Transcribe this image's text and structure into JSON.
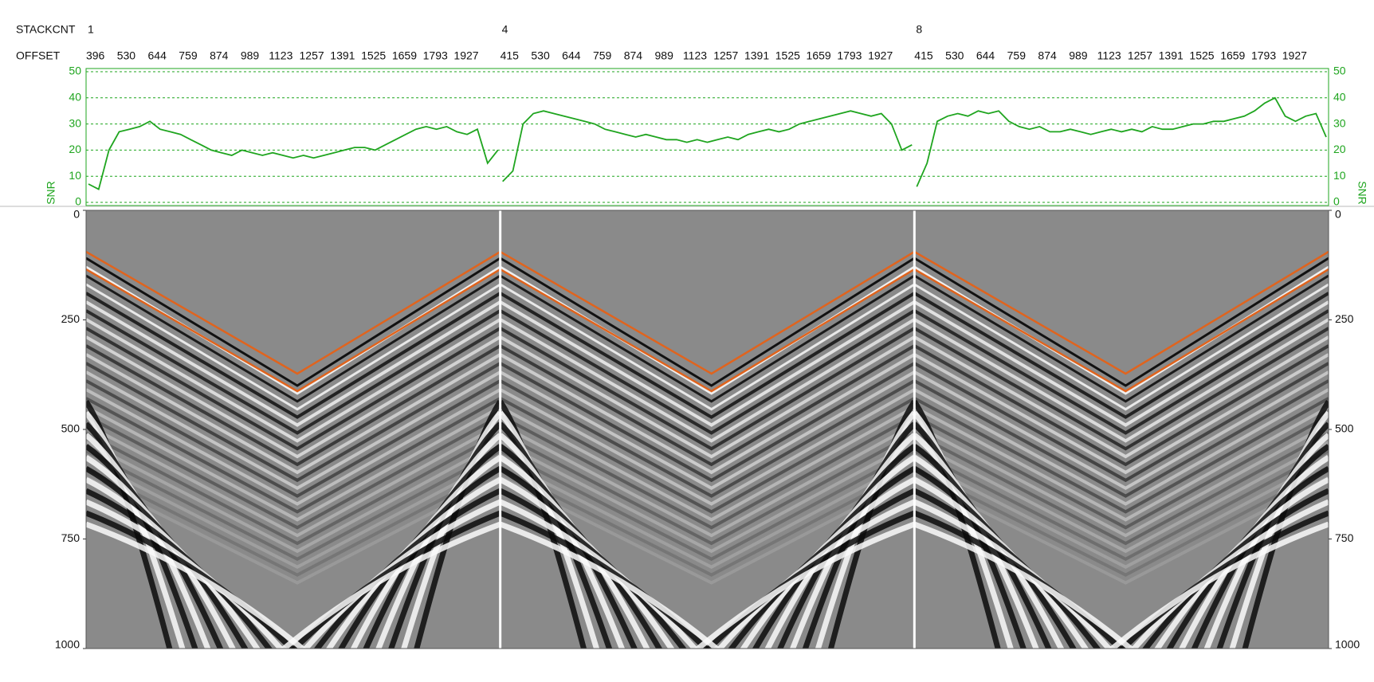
{
  "chart_data": {
    "type": "line",
    "stackcnt_label": "STACKCNT",
    "offset_label": "OFFSET",
    "color": "#1fa51f",
    "snr_label": "SNR",
    "ylim": [
      0,
      50
    ],
    "yticks": [
      0,
      10,
      20,
      30,
      40,
      50
    ],
    "grid": true,
    "time_ylim": [
      0,
      1000
    ],
    "time_yticks": [
      0,
      250,
      500,
      750,
      1000
    ],
    "panels": [
      {
        "stackcnt": 1,
        "offsets": [
          396,
          530,
          644,
          759,
          874,
          989,
          1123,
          1257,
          1391,
          1525,
          1659,
          1793,
          1927
        ],
        "snr": [
          7,
          5,
          20,
          27,
          28,
          29,
          31,
          28,
          27,
          26,
          24,
          22,
          20,
          19,
          18,
          20,
          19,
          18,
          19,
          18,
          17,
          18,
          17,
          18,
          19,
          20,
          21,
          21,
          20,
          22,
          24,
          26,
          28,
          29,
          28,
          29,
          27,
          26,
          28,
          15,
          20
        ]
      },
      {
        "stackcnt": 4,
        "offsets": [
          415,
          530,
          644,
          759,
          874,
          989,
          1123,
          1257,
          1391,
          1525,
          1659,
          1793,
          1927
        ],
        "snr": [
          8,
          12,
          30,
          34,
          35,
          34,
          33,
          32,
          31,
          30,
          28,
          27,
          26,
          25,
          26,
          25,
          24,
          24,
          23,
          24,
          23,
          24,
          25,
          24,
          26,
          27,
          28,
          27,
          28,
          30,
          31,
          32,
          33,
          34,
          35,
          34,
          33,
          34,
          30,
          20,
          22
        ]
      },
      {
        "stackcnt": 8,
        "offsets": [
          415,
          530,
          644,
          759,
          874,
          989,
          1123,
          1257,
          1391,
          1525,
          1659,
          1793,
          1927
        ],
        "snr": [
          6,
          15,
          31,
          33,
          34,
          33,
          35,
          34,
          35,
          31,
          29,
          28,
          29,
          27,
          27,
          28,
          27,
          26,
          27,
          28,
          27,
          28,
          27,
          29,
          28,
          28,
          29,
          30,
          30,
          31,
          31,
          32,
          33,
          35,
          38,
          40,
          33,
          31,
          33,
          34,
          25
        ]
      }
    ]
  }
}
